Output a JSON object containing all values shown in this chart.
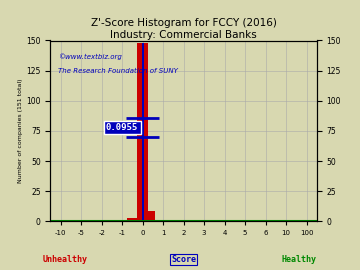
{
  "title": "Z'-Score Histogram for FCCY (2016)",
  "subtitle": "Industry: Commercial Banks",
  "watermark1": "©www.textbiz.org",
  "watermark2": "The Research Foundation of SUNY",
  "ylabel": "Number of companies (151 total)",
  "xlabel_center": "Score",
  "xlabel_left": "Unhealthy",
  "xlabel_right": "Healthy",
  "xtick_labels": [
    "-10",
    "-5",
    "-2",
    "-1",
    "0",
    "1",
    "2",
    "3",
    "4",
    "5",
    "6",
    "10",
    "100"
  ],
  "ylim": [
    0,
    150
  ],
  "yticks": [
    0,
    25,
    50,
    75,
    100,
    125,
    150
  ],
  "bg_color": "#d8d8b0",
  "bar_color_red": "#cc0000",
  "bar_color_blue": "#0000bb",
  "annotation_text": "0.0955",
  "unhealthy_color": "#cc0000",
  "healthy_color": "#008800",
  "score_color": "#0000bb",
  "grid_color": "#aaaaaa",
  "title_color": "#000000",
  "watermark_color": "#0000bb"
}
